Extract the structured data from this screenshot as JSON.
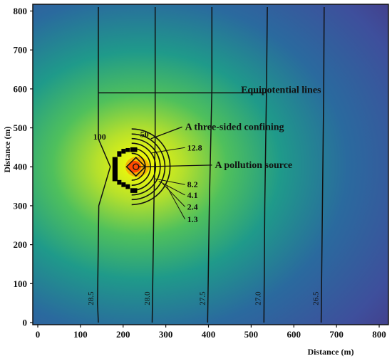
{
  "chart_data": {
    "type": "heatmap",
    "xlabel": "Distance (m)",
    "ylabel": "Distance (m)",
    "xlim": [
      0,
      810
    ],
    "ylim": [
      0,
      810
    ],
    "xticks": [
      0,
      100,
      200,
      300,
      400,
      500,
      600,
      700,
      800
    ],
    "yticks": [
      0,
      100,
      200,
      300,
      400,
      500,
      600,
      700,
      800
    ],
    "colormap": [
      "#ffff00",
      "#b5e02c",
      "#4fc05c",
      "#1f9a8a",
      "#2a6a9e",
      "#3e4f9c",
      "#453a86"
    ],
    "source": {
      "x": 230,
      "y": 400
    },
    "equipotential_lines": [
      {
        "label": "28.5",
        "x": [
          142,
          142,
          170,
          143,
          140,
          142
        ],
        "y": [
          810,
          472,
          400,
          300,
          50,
          0
        ]
      },
      {
        "label": "28.0",
        "x": [
          275,
          275,
          272,
          268
        ],
        "y": [
          810,
          470,
          300,
          0
        ]
      },
      {
        "label": "27.5",
        "x": [
          408,
          408,
          402,
          398
        ],
        "y": [
          810,
          600,
          300,
          0
        ]
      },
      {
        "label": "27.0",
        "x": [
          538,
          536,
          532,
          530
        ],
        "y": [
          810,
          600,
          300,
          0
        ]
      },
      {
        "label": "26.5",
        "x": [
          671,
          670,
          667,
          664
        ],
        "y": [
          810,
          600,
          300,
          0
        ]
      }
    ],
    "concentration_isolines": [
      {
        "label": "100",
        "r": 22
      },
      {
        "label": "50",
        "r": 32
      },
      {
        "label": "12.8",
        "r": 44
      },
      {
        "label": "8.2",
        "r": 56
      },
      {
        "label": "4.1",
        "r": 67
      },
      {
        "label": "2.4",
        "r": 78
      },
      {
        "label": "1.3",
        "r": 90
      }
    ],
    "annotations": [
      {
        "text": "Equipotential lines",
        "x": 570,
        "y": 590
      },
      {
        "text": "A three-sided confining",
        "x": 345,
        "y": 495
      },
      {
        "text": "A pollution source",
        "x": 415,
        "y": 397
      }
    ]
  }
}
